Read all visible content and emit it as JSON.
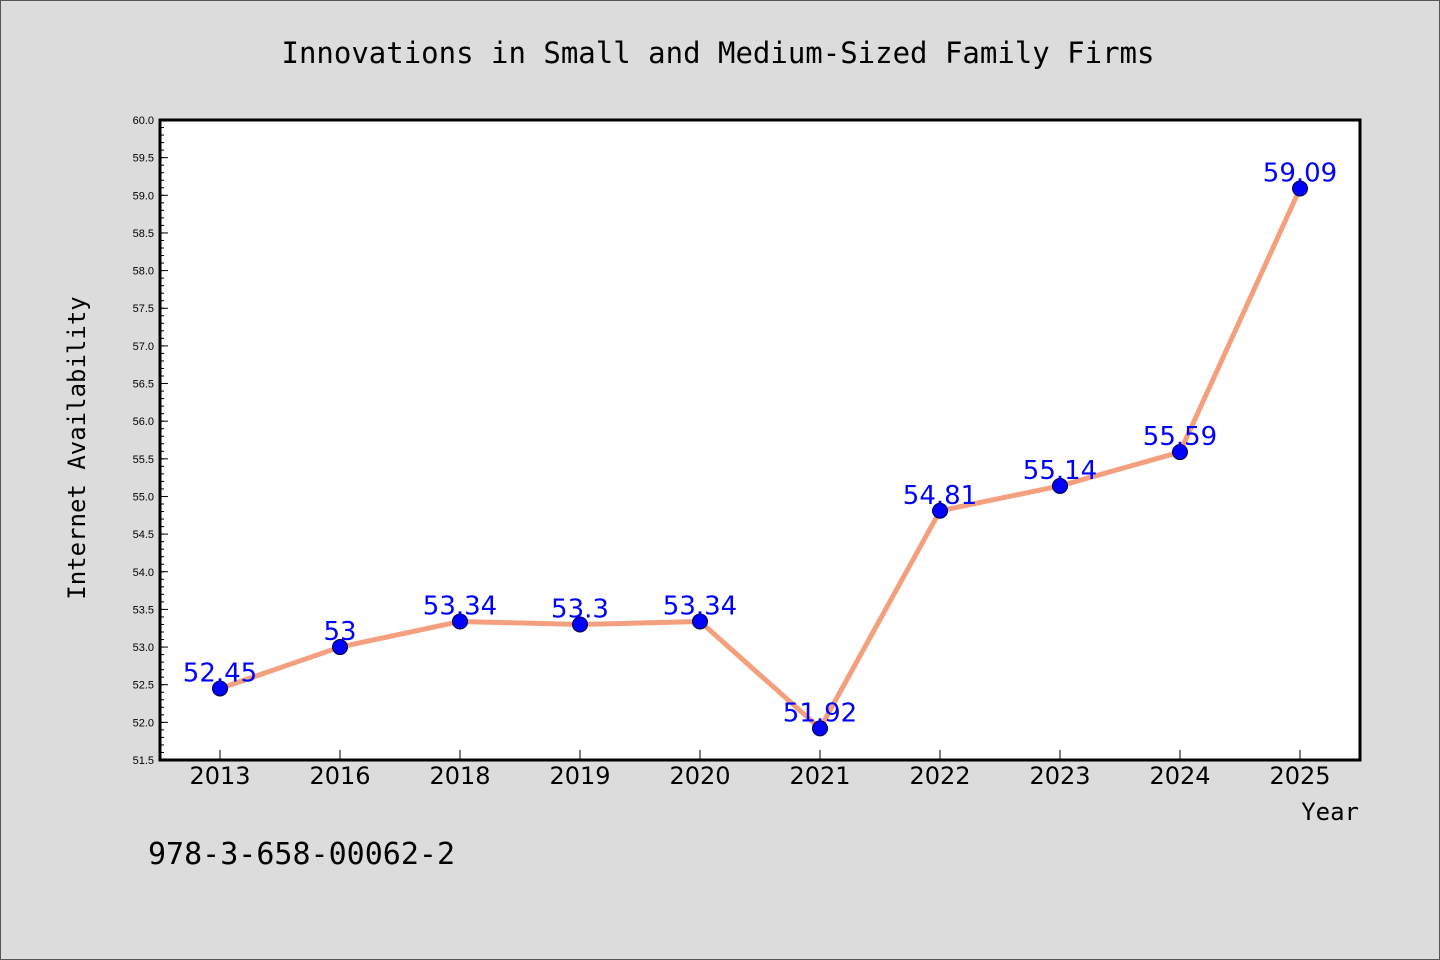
{
  "chart_data": {
    "type": "line",
    "title": "Innovations in Small and Medium-Sized Family Firms",
    "xlabel": "Year",
    "ylabel": "Internet Availability",
    "categories": [
      "2013",
      "2016",
      "2018",
      "2019",
      "2020",
      "2021",
      "2022",
      "2023",
      "2024",
      "2025"
    ],
    "series": [
      {
        "values": [
          52.45,
          53,
          53.34,
          53.3,
          53.34,
          51.92,
          54.81,
          55.14,
          55.59,
          59.09
        ],
        "labels": [
          "52.45",
          "53",
          "53.34",
          "53.3",
          "53.34",
          "51.92",
          "54.81",
          "55.14",
          "55.59",
          "59.09"
        ],
        "line_color": "#f4a07e",
        "marker_color": "#0000ff",
        "label_color": "#0000ff"
      }
    ],
    "ylim": [
      51.5,
      60.0
    ],
    "yticks": [
      "51.5",
      "52.0",
      "52.5",
      "53.0",
      "53.5",
      "54.0",
      "54.5",
      "55.0",
      "55.5",
      "56.0",
      "56.5",
      "57.0",
      "57.5",
      "58.0",
      "58.5",
      "59.0",
      "59.5",
      "60.0"
    ],
    "grid": false,
    "legend": "none"
  },
  "footer_text": "978-3-658-00062-2",
  "colors": {
    "background": "#dcdcdc",
    "plot_background": "#ffffff"
  }
}
